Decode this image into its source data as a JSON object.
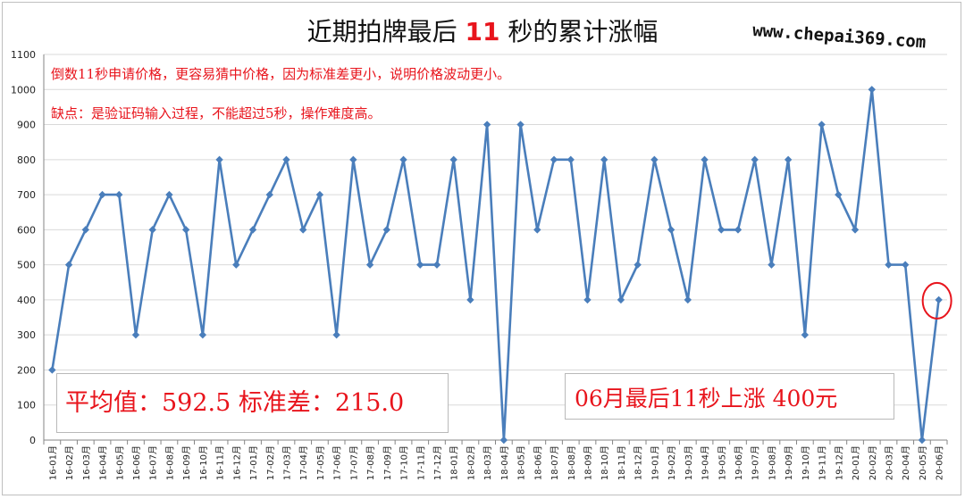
{
  "chart_data": {
    "type": "line",
    "title_parts": [
      "近期拍牌最后 ",
      "11",
      " 秒的累计涨幅"
    ],
    "watermark": "www.chepai369.com",
    "notes": [
      "倒数11秒申请价格，更容易猜中价格，因为标准差更小，说明价格波动更小。",
      "缺点：是验证码输入过程，不能超过5秒，操作难度高。"
    ],
    "stats_text": "平均值：592.5 标准差：215.0",
    "highlight_text": "06月最后11秒上涨 400元",
    "ylim": [
      0,
      1100
    ],
    "y_ticks": [
      0,
      100,
      200,
      300,
      400,
      500,
      600,
      700,
      800,
      900,
      1000,
      1100
    ],
    "categories": [
      "16-01月",
      "16-02月",
      "16-03月",
      "16-04月",
      "16-05月",
      "16-06月",
      "16-07月",
      "16-08月",
      "16-09月",
      "16-10月",
      "16-11月",
      "16-12月",
      "17-01月",
      "17-02月",
      "17-03月",
      "17-04月",
      "17-05月",
      "17-06月",
      "17-07月",
      "17-08月",
      "17-09月",
      "17-10月",
      "17-11月",
      "17-12月",
      "18-01月",
      "18-02月",
      "18-03月",
      "18-04月",
      "18-05月",
      "18-06月",
      "18-07月",
      "18-08月",
      "18-09月",
      "18-10月",
      "18-11月",
      "18-12月",
      "19-01月",
      "19-02月",
      "19-03月",
      "19-04月",
      "19-05月",
      "19-06月",
      "19-07月",
      "19-08月",
      "19-09月",
      "19-10月",
      "19-11月",
      "19-12月",
      "20-01月",
      "20-02月",
      "20-03月",
      "20-04月",
      "20-05月",
      "20-06月"
    ],
    "values": [
      200,
      500,
      600,
      700,
      700,
      300,
      600,
      700,
      600,
      300,
      800,
      500,
      600,
      700,
      800,
      600,
      700,
      300,
      800,
      500,
      600,
      800,
      500,
      500,
      800,
      400,
      900,
      0,
      900,
      600,
      800,
      800,
      400,
      800,
      400,
      500,
      800,
      600,
      400,
      800,
      600,
      600,
      800,
      500,
      800,
      300,
      900,
      700,
      600,
      1000,
      500,
      500,
      0,
      400
    ],
    "line_color": "#4a7ebb",
    "highlight_color": "#e8141c",
    "highlight_index": 53
  }
}
